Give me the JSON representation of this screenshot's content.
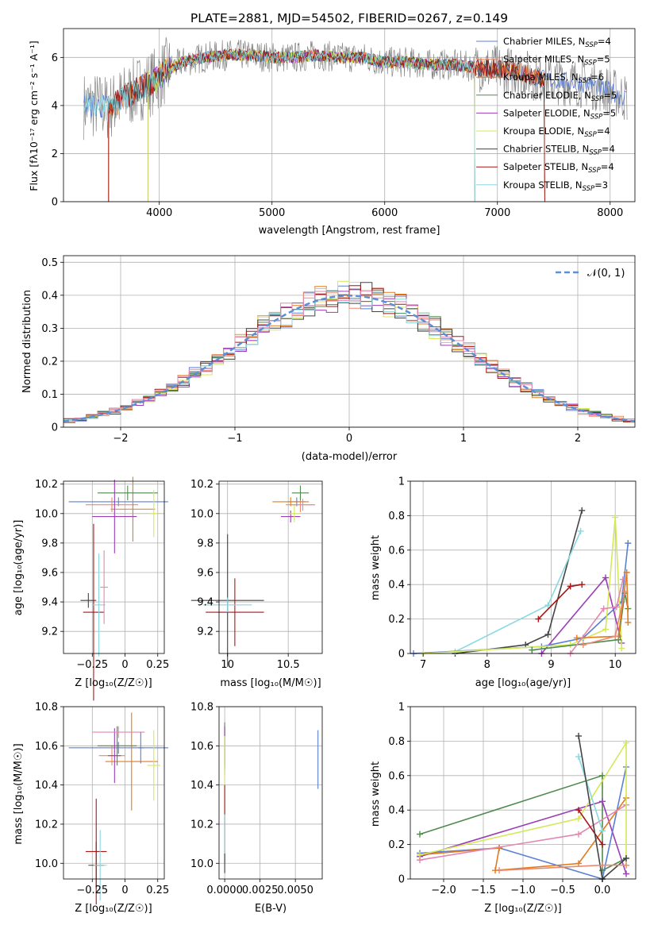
{
  "title": "PLATE=2881, MJD=54502, FIBERID=0267, z=0.149",
  "colors": {
    "blue": "#5b7fd6",
    "salmon": "#e88a70",
    "orange": "#e07b20",
    "green": "#4f8a4f",
    "purple": "#9b3db5",
    "lime": "#d4e85a",
    "dark": "#444444",
    "red": "#aa1515",
    "cyan": "#88d8e0",
    "pink": "#e288b0",
    "gray": "#888888"
  },
  "chart_data": [
    {
      "id": "spectrum",
      "type": "line",
      "xlabel": "wavelength [Angstrom, rest frame]",
      "ylabel": "Flux [fλ10⁻¹⁷ erg cm⁻² s⁻¹ A⁻¹]",
      "xlim": [
        3150,
        8220
      ],
      "ylim": [
        0,
        7.2
      ],
      "xticks": [
        4000,
        5000,
        6000,
        7000,
        8000
      ],
      "yticks": [
        0,
        2,
        4,
        6
      ],
      "legend_position": "top-right",
      "legend": [
        {
          "label": "Chabrier MILES, N",
          "sub": "SSP",
          "suffix": "=4",
          "color": "blue"
        },
        {
          "label": "Salpeter MILES, N",
          "sub": "SSP",
          "suffix": "=5",
          "color": "salmon"
        },
        {
          "label": "Kroupa MILES, N",
          "sub": "SSP",
          "suffix": "=6",
          "color": "orange"
        },
        {
          "label": "Chabrier ELODIE, N",
          "sub": "SSP",
          "suffix": "=5",
          "color": "green"
        },
        {
          "label": "Salpeter ELODIE, N",
          "sub": "SSP",
          "suffix": "=5",
          "color": "purple"
        },
        {
          "label": "Kroupa ELODIE, N",
          "sub": "SSP",
          "suffix": "=4",
          "color": "lime"
        },
        {
          "label": "Chabrier STELIB, N",
          "sub": "SSP",
          "suffix": "=4",
          "color": "dark"
        },
        {
          "label": "Salpeter STELIB, N",
          "sub": "SSP",
          "suffix": "=4",
          "color": "red"
        },
        {
          "label": "Kroupa STELIB, N",
          "sub": "SSP",
          "suffix": "=3",
          "color": "cyan"
        }
      ],
      "continuum_x": [
        3330,
        3450,
        3550,
        3650,
        3750,
        3850,
        3950,
        4050,
        4200,
        4400,
        4600,
        4800,
        5000,
        5200,
        5400,
        5600,
        5800,
        6000,
        6200,
        6400,
        6600,
        6800,
        7000,
        7200,
        7400,
        7600,
        7800,
        8000,
        8150
      ],
      "continuum_y": [
        4.0,
        4.0,
        3.9,
        4.2,
        4.5,
        4.8,
        5.0,
        5.4,
        5.8,
        6.0,
        6.1,
        6.1,
        6.0,
        6.0,
        6.1,
        6.0,
        6.0,
        5.8,
        5.8,
        5.7,
        5.7,
        5.6,
        5.5,
        5.4,
        5.1,
        5.0,
        4.9,
        4.6,
        4.3
      ],
      "model_ranges": [
        [
          3330,
          8150
        ],
        [
          3550,
          7420
        ],
        [
          3550,
          7420
        ],
        [
          3900,
          6800
        ],
        [
          3900,
          6800
        ],
        [
          3900,
          6800
        ],
        [
          3550,
          7420
        ],
        [
          3550,
          7420
        ],
        [
          3330,
          6800
        ]
      ]
    },
    {
      "id": "residuals",
      "type": "line",
      "xlabel": "(data-model)/error",
      "ylabel": "Normed distribution",
      "xlim": [
        -2.5,
        2.5
      ],
      "ylim": [
        0,
        0.52
      ],
      "xticks": [
        -2,
        -1,
        0,
        1,
        2
      ],
      "yticks": [
        0.0,
        0.1,
        0.2,
        0.3,
        0.4,
        0.5
      ],
      "legend_position": "top-right",
      "legend_label": "𝒩(0, 1)",
      "bin_width": 0.1,
      "series_colors": [
        "blue",
        "salmon",
        "orange",
        "green",
        "purple",
        "lime",
        "dark",
        "red",
        "cyan",
        "pink"
      ]
    },
    {
      "id": "age-Z",
      "type": "scatter",
      "xlabel": "Z [log₁₀(Z/Z☉)]",
      "ylabel": "age  [log₁₀(age/yr)]",
      "xlim": [
        -0.47,
        0.3
      ],
      "ylim": [
        9.05,
        10.22
      ],
      "xticks": [
        -0.25,
        0.0,
        0.25
      ],
      "ytick_labels": [
        "9.2",
        "9.4",
        "9.6",
        "9.8",
        "10.0",
        "10.2"
      ],
      "yticks": [
        9.2,
        9.4,
        9.6,
        9.8,
        10.0,
        10.2
      ],
      "points": [
        {
          "c": "blue",
          "x": -0.05,
          "y": 10.08,
          "xe": 0.38,
          "ye": 0.03
        },
        {
          "c": "salmon",
          "x": -0.1,
          "y": 10.06,
          "xe": 0.2,
          "ye": 0.05
        },
        {
          "c": "orange",
          "x": 0.06,
          "y": 10.03,
          "xe": 0.17,
          "ye": 0.22
        },
        {
          "c": "green",
          "x": 0.02,
          "y": 10.14,
          "xe": 0.23,
          "ye": 0.05
        },
        {
          "c": "purple",
          "x": -0.08,
          "y": 9.98,
          "xe": 0.17,
          "ye": 0.25
        },
        {
          "c": "lime",
          "x": 0.22,
          "y": 10.0,
          "xe": 0.03,
          "ye": 0.16
        },
        {
          "c": "dark",
          "x": -0.28,
          "y": 9.41,
          "xe": 0.06,
          "ye": 0.05
        },
        {
          "c": "red",
          "x": -0.24,
          "y": 9.33,
          "xe": 0.08,
          "ye": 0.6
        },
        {
          "c": "cyan",
          "x": -0.2,
          "y": 9.38,
          "xe": 0.05,
          "ye": 0.35
        },
        {
          "c": "pink",
          "x": -0.16,
          "y": 9.5,
          "xe": 0.03,
          "ye": 0.25
        }
      ]
    },
    {
      "id": "age-mass",
      "type": "scatter",
      "xlabel": "mass [log₁₀(M/M☉)]",
      "xlim": [
        9.93,
        10.78
      ],
      "ylim": [
        9.05,
        10.22
      ],
      "xticks": [
        10.0,
        10.5
      ],
      "yticks": [
        9.2,
        9.4,
        9.6,
        9.8,
        10.0,
        10.2
      ],
      "ytick_labels": [
        "9.2",
        "9.4",
        "9.6",
        "9.8",
        "10.0",
        "10.2"
      ],
      "points": [
        {
          "c": "blue",
          "x": 10.57,
          "y": 10.08,
          "xe": 0.07,
          "ye": 0.03
        },
        {
          "c": "salmon",
          "x": 10.6,
          "y": 10.06,
          "xe": 0.12,
          "ye": 0.05
        },
        {
          "c": "orange",
          "x": 10.52,
          "y": 10.08,
          "xe": 0.15,
          "ye": 0.03
        },
        {
          "c": "green",
          "x": 10.6,
          "y": 10.14,
          "xe": 0.07,
          "ye": 0.05
        },
        {
          "c": "purple",
          "x": 10.52,
          "y": 9.98,
          "xe": 0.08,
          "ye": 0.04
        },
        {
          "c": "lime",
          "x": 10.55,
          "y": 10.0,
          "xe": 0.04,
          "ye": 0.06
        },
        {
          "c": "dark",
          "x": 10.0,
          "y": 9.41,
          "xe": 0.3,
          "ye": 0.45
        },
        {
          "c": "red",
          "x": 10.06,
          "y": 9.33,
          "xe": 0.24,
          "ye": 0.23
        },
        {
          "c": "cyan",
          "x": 10.0,
          "y": 9.38,
          "xe": 0.2,
          "ye": 0.05
        },
        {
          "c": "pink",
          "x": 10.62,
          "y": 10.06,
          "xe": 0.1,
          "ye": 0.04
        }
      ]
    },
    {
      "id": "weight-age",
      "type": "line",
      "xlabel": "age  [log₁₀(age/yr)]",
      "ylabel": "mass weight",
      "xlim": [
        6.8,
        10.32
      ],
      "ylim": [
        0,
        1.0
      ],
      "xticks": [
        7,
        8,
        9,
        10
      ],
      "yticks": [
        0.0,
        0.2,
        0.4,
        0.6,
        0.8,
        1.0
      ],
      "series": [
        {
          "c": "dark",
          "x": [
            7.5,
            8.6,
            8.95,
            9.48
          ],
          "y": [
            0.0,
            0.05,
            0.11,
            0.83
          ]
        },
        {
          "c": "cyan",
          "x": [
            7.5,
            8.95,
            9.46
          ],
          "y": [
            0.01,
            0.28,
            0.71
          ]
        },
        {
          "c": "red",
          "x": [
            8.8,
            9.3,
            9.48
          ],
          "y": [
            0.2,
            0.39,
            0.4
          ]
        },
        {
          "c": "purple",
          "x": [
            8.85,
            9.85,
            10.1
          ],
          "y": [
            0.0,
            0.44,
            0.06
          ]
        },
        {
          "c": "blue",
          "x": [
            6.85,
            8.85,
            9.5,
            10.1,
            10.2
          ],
          "y": [
            0.0,
            0.04,
            0.09,
            0.3,
            0.64
          ]
        },
        {
          "c": "lime",
          "x": [
            7.0,
            9.3,
            9.85,
            10.0,
            10.1
          ],
          "y": [
            0.0,
            0.05,
            0.14,
            0.79,
            0.03
          ]
        },
        {
          "c": "green",
          "x": [
            8.7,
            10.05,
            10.15,
            10.2
          ],
          "y": [
            0.02,
            0.08,
            0.35,
            0.26
          ]
        },
        {
          "c": "orange",
          "x": [
            9.4,
            10.05,
            10.18,
            10.2
          ],
          "y": [
            0.09,
            0.1,
            0.47,
            0.18
          ]
        },
        {
          "c": "pink",
          "x": [
            9.3,
            9.82,
            10.02,
            10.12
          ],
          "y": [
            0.0,
            0.26,
            0.27,
            0.43
          ]
        },
        {
          "c": "salmon",
          "x": [
            9.5,
            10.0,
            10.15
          ],
          "y": [
            0.05,
            0.1,
            0.36
          ]
        }
      ]
    },
    {
      "id": "mass-Z",
      "type": "scatter",
      "xlabel": "Z [log₁₀(Z/Z☉)]",
      "ylabel": "mass [log₁₀(M/M☉)]",
      "xlim": [
        -0.47,
        0.3
      ],
      "ylim": [
        9.92,
        10.8
      ],
      "xticks": [
        -0.25,
        0.0,
        0.25
      ],
      "yticks": [
        10.0,
        10.2,
        10.4,
        10.6,
        10.8
      ],
      "ytick_labels": [
        "10.0",
        "10.2",
        "10.4",
        "10.6",
        "10.8"
      ],
      "points": [
        {
          "c": "blue",
          "x": -0.05,
          "y": 10.59,
          "xe": 0.38,
          "ye": 0.03
        },
        {
          "c": "salmon",
          "x": -0.1,
          "y": 10.55,
          "xe": 0.1,
          "ye": 0.05
        },
        {
          "c": "orange",
          "x": 0.05,
          "y": 10.52,
          "xe": 0.2,
          "ye": 0.25
        },
        {
          "c": "green",
          "x": -0.06,
          "y": 10.6,
          "xe": 0.15,
          "ye": 0.1
        },
        {
          "c": "purple",
          "x": -0.08,
          "y": 10.55,
          "xe": 0.05,
          "ye": 0.14
        },
        {
          "c": "lime",
          "x": 0.22,
          "y": 10.5,
          "xe": 0.05,
          "ye": 0.18
        },
        {
          "c": "dark",
          "x": -0.22,
          "y": 9.99,
          "xe": 0.06,
          "ye": 0.12
        },
        {
          "c": "red",
          "x": -0.22,
          "y": 10.06,
          "xe": 0.08,
          "ye": 0.27
        },
        {
          "c": "cyan",
          "x": -0.19,
          "y": 9.99,
          "xe": 0.05,
          "ye": 0.18
        },
        {
          "c": "pink",
          "x": -0.05,
          "y": 10.67,
          "xe": 0.2,
          "ye": 0.03
        },
        {
          "c": "blue",
          "x": 0.12,
          "y": 10.59,
          "xe": 0.02,
          "ye": 0.08
        }
      ]
    },
    {
      "id": "mass-EBV",
      "type": "scatter",
      "xlabel": "E(B-V)",
      "xlim": [
        -0.0004,
        0.0069
      ],
      "ylim": [
        9.92,
        10.8
      ],
      "xticks": [
        0.0,
        0.0025,
        0.005
      ],
      "xtick_labels": [
        "0.0000",
        "0.0025",
        "0.0050"
      ],
      "yticks": [
        10.0,
        10.2,
        10.4,
        10.6,
        10.8
      ],
      "ytick_labels": [
        "10.0",
        "10.2",
        "10.4",
        "10.6",
        "10.8"
      ],
      "points": [
        {
          "c": "blue",
          "x": 0.0066,
          "y": 10.53,
          "xe": 0.0,
          "ye": 0.15
        },
        {
          "c": "salmon",
          "x": 0.0,
          "y": 10.55,
          "xe": 0.0,
          "ye": 0.1
        },
        {
          "c": "green",
          "x": 0.0,
          "y": 10.6,
          "xe": 0.0,
          "ye": 0.12
        },
        {
          "c": "purple",
          "x": 0.0,
          "y": 10.6,
          "xe": 0.0,
          "ye": 0.1
        },
        {
          "c": "lime",
          "x": 0.0,
          "y": 10.45,
          "xe": 0.0,
          "ye": 0.2
        },
        {
          "c": "red",
          "x": 0.0,
          "y": 10.2,
          "xe": 0.0,
          "ye": 0.2
        },
        {
          "c": "cyan",
          "x": 0.0,
          "y": 10.1,
          "xe": 0.0,
          "ye": 0.15
        },
        {
          "c": "dark",
          "x": 0.0,
          "y": 10.0,
          "xe": 0.0,
          "ye": 0.05
        }
      ]
    },
    {
      "id": "weight-Z",
      "type": "line",
      "xlabel": "Z [log₁₀(Z/Z☉)]",
      "ylabel": "mass weight",
      "xlim": [
        -2.42,
        0.42
      ],
      "ylim": [
        0,
        1.0
      ],
      "xticks": [
        -2.0,
        -1.5,
        -1.0,
        -0.5,
        0.0
      ],
      "xtick_labels": [
        "−2.0",
        "−1.5",
        "−1.0",
        "−0.5",
        "0.0"
      ],
      "yticks": [
        0.0,
        0.2,
        0.4,
        0.6,
        0.8,
        1.0
      ],
      "series": [
        {
          "c": "green",
          "x": [
            -2.3,
            0.0,
            0.0,
            0.3
          ],
          "y": [
            0.26,
            0.6,
            0.05,
            0.12
          ]
        },
        {
          "c": "purple",
          "x": [
            -2.3,
            -0.0,
            0.3
          ],
          "y": [
            0.13,
            0.45,
            0.03
          ]
        },
        {
          "c": "blue",
          "x": [
            -2.3,
            -1.3,
            0.0,
            0.3
          ],
          "y": [
            0.15,
            0.18,
            0.0,
            0.65
          ]
        },
        {
          "c": "orange",
          "x": [
            -2.3,
            -1.3,
            -1.35,
            -0.3,
            0.3
          ],
          "y": [
            0.14,
            0.18,
            0.05,
            0.09,
            0.47
          ]
        },
        {
          "c": "pink",
          "x": [
            -2.3,
            -0.3,
            0.3
          ],
          "y": [
            0.11,
            0.26,
            0.43
          ]
        },
        {
          "c": "lime",
          "x": [
            -2.3,
            -0.3,
            0.3,
            0.3
          ],
          "y": [
            0.14,
            0.35,
            0.79,
            0.08
          ]
        },
        {
          "c": "red",
          "x": [
            -0.3,
            0.0
          ],
          "y": [
            0.4,
            0.2
          ]
        },
        {
          "c": "cyan",
          "x": [
            -0.3,
            0.0
          ],
          "y": [
            0.71,
            0.28
          ]
        },
        {
          "c": "dark",
          "x": [
            -0.3,
            0.0,
            0.3
          ],
          "y": [
            0.83,
            0.0,
            0.12
          ]
        },
        {
          "c": "salmon",
          "x": [
            -1.3,
            0.0,
            0.3
          ],
          "y": [
            0.05,
            0.08,
            0.08
          ]
        }
      ]
    }
  ]
}
